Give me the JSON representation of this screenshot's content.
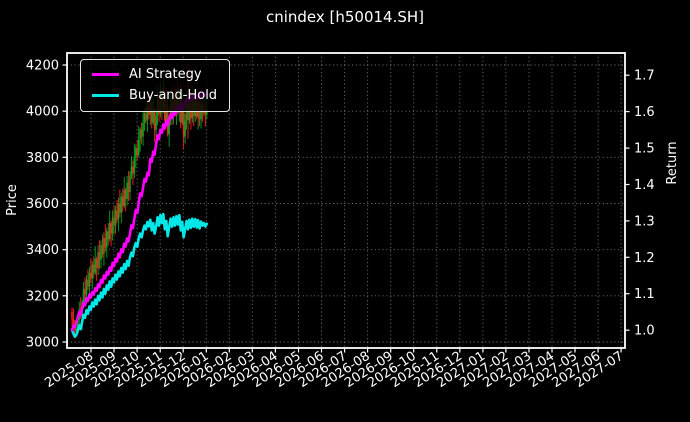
{
  "chart_data": {
    "type": "candlestick+line",
    "title": "cnindex [h50014.SH]",
    "left_axis": {
      "label": "Price",
      "ticks": [
        4200,
        4000,
        3800,
        3600,
        3400,
        3200,
        3000
      ],
      "range": [
        2974,
        4252
      ]
    },
    "right_axis": {
      "label": "Return",
      "ticks": [
        "1.7",
        "1.6",
        "1.5",
        "1.4",
        "1.3",
        "1.2",
        "1.1",
        "1.0"
      ],
      "range": [
        0.951,
        1.761
      ]
    },
    "x_ticks": [
      "2025-08",
      "2025-09",
      "2025-10",
      "2025-11",
      "2025-12",
      "2026-01",
      "2026-02",
      "2026-03",
      "2026-04",
      "2026-05",
      "2026-06",
      "2026-07",
      "2026-08",
      "2026-09",
      "2026-10",
      "2026-11",
      "2026-12",
      "2027-01",
      "2027-02",
      "2027-03",
      "2027-04",
      "2027-05",
      "2027-06",
      "2027-07"
    ],
    "grid": true,
    "legend_position": "upper-left",
    "candles": [
      [
        3130,
        3150,
        3065,
        3100
      ],
      [
        3100,
        3145,
        3055,
        3070
      ],
      [
        3070,
        3095,
        3030,
        3045
      ],
      [
        3045,
        3090,
        3025,
        3060
      ],
      [
        3060,
        3110,
        3040,
        3095
      ],
      [
        3095,
        3175,
        3070,
        3140
      ],
      [
        3140,
        3195,
        3100,
        3110
      ],
      [
        3110,
        3185,
        3055,
        3175
      ],
      [
        3175,
        3260,
        3145,
        3230
      ],
      [
        3230,
        3280,
        3165,
        3205
      ],
      [
        3205,
        3290,
        3170,
        3270
      ],
      [
        3270,
        3315,
        3225,
        3240
      ],
      [
        3240,
        3325,
        3190,
        3300
      ],
      [
        3300,
        3360,
        3255,
        3275
      ],
      [
        3275,
        3350,
        3230,
        3335
      ],
      [
        3335,
        3370,
        3275,
        3300
      ],
      [
        3300,
        3415,
        3290,
        3360
      ],
      [
        3360,
        3370,
        3265,
        3320
      ],
      [
        3320,
        3420,
        3290,
        3390
      ],
      [
        3390,
        3440,
        3315,
        3355
      ],
      [
        3355,
        3440,
        3320,
        3420
      ],
      [
        3420,
        3465,
        3365,
        3380
      ],
      [
        3380,
        3475,
        3330,
        3450
      ],
      [
        3450,
        3510,
        3390,
        3410
      ],
      [
        3410,
        3495,
        3365,
        3480
      ],
      [
        3480,
        3515,
        3420,
        3445
      ],
      [
        3445,
        3570,
        3435,
        3515
      ],
      [
        3515,
        3525,
        3415,
        3470
      ],
      [
        3470,
        3570,
        3440,
        3540
      ],
      [
        3540,
        3590,
        3465,
        3505
      ],
      [
        3505,
        3590,
        3470,
        3570
      ],
      [
        3570,
        3615,
        3515,
        3530
      ],
      [
        3530,
        3625,
        3480,
        3600
      ],
      [
        3600,
        3660,
        3540,
        3560
      ],
      [
        3560,
        3645,
        3515,
        3630
      ],
      [
        3630,
        3665,
        3565,
        3590
      ],
      [
        3590,
        3715,
        3580,
        3660
      ],
      [
        3660,
        3670,
        3565,
        3620
      ],
      [
        3620,
        3720,
        3590,
        3690
      ],
      [
        3690,
        3740,
        3610,
        3650
      ],
      [
        3650,
        3740,
        3615,
        3720
      ],
      [
        3720,
        3805,
        3705,
        3760
      ],
      [
        3760,
        3785,
        3680,
        3730
      ],
      [
        3730,
        3860,
        3710,
        3800
      ],
      [
        3800,
        3855,
        3755,
        3840
      ],
      [
        3840,
        3875,
        3785,
        3810
      ],
      [
        3810,
        3935,
        3800,
        3880
      ],
      [
        3880,
        3930,
        3825,
        3920
      ],
      [
        3920,
        3950,
        3860,
        3890
      ],
      [
        3890,
        4000,
        3850,
        3950
      ],
      [
        3950,
        4010,
        3915,
        3990
      ],
      [
        3990,
        4035,
        3945,
        3960
      ],
      [
        3960,
        4045,
        3910,
        4020
      ],
      [
        4020,
        4080,
        3965,
        3985
      ],
      [
        3985,
        4055,
        3940,
        4040
      ],
      [
        4040,
        4075,
        3925,
        3950
      ],
      [
        3950,
        4065,
        3940,
        4010
      ],
      [
        4010,
        4020,
        3865,
        3920
      ],
      [
        3920,
        4010,
        3890,
        3980
      ],
      [
        3980,
        4110,
        3940,
        4060
      ],
      [
        4060,
        4080,
        3955,
        3990
      ],
      [
        3990,
        4125,
        3975,
        4080
      ],
      [
        4080,
        4105,
        3960,
        4010
      ],
      [
        4010,
        4150,
        3990,
        4090
      ],
      [
        4090,
        4105,
        3915,
        3960
      ],
      [
        3960,
        4065,
        3935,
        4030
      ],
      [
        4030,
        4085,
        3890,
        3900
      ],
      [
        3900,
        3980,
        3845,
        3970
      ],
      [
        3970,
        4080,
        3940,
        4050
      ],
      [
        4050,
        4100,
        3940,
        3980
      ],
      [
        3980,
        4080,
        3945,
        4060
      ],
      [
        4060,
        4105,
        3975,
        3990
      ],
      [
        3990,
        4095,
        3940,
        4070
      ],
      [
        4070,
        4130,
        3980,
        4000
      ],
      [
        4000,
        4095,
        3955,
        4080
      ],
      [
        4080,
        4115,
        3925,
        3950
      ],
      [
        3950,
        4075,
        3940,
        4020
      ],
      [
        4020,
        4030,
        3835,
        3890
      ],
      [
        3890,
        3990,
        3860,
        3960
      ],
      [
        3960,
        4080,
        3920,
        4030
      ],
      [
        4030,
        4200,
        3880,
        3960
      ],
      [
        3960,
        4085,
        3945,
        4040
      ],
      [
        4040,
        4065,
        3920,
        3970
      ],
      [
        3970,
        4110,
        3950,
        4050
      ],
      [
        4050,
        4065,
        3935,
        3980
      ],
      [
        3980,
        4080,
        3955,
        4045
      ],
      [
        4045,
        4100,
        3965,
        3975
      ],
      [
        3975,
        4045,
        3920,
        4035
      ],
      [
        4035,
        4065,
        3935,
        3965
      ],
      [
        3965,
        4075,
        3925,
        4025
      ],
      [
        4025,
        4045,
        3955,
        3990
      ],
      [
        3990,
        4055,
        3975,
        4010
      ],
      [
        4010,
        4035,
        3935,
        3985
      ],
      [
        3985,
        4065,
        3965,
        4005
      ]
    ],
    "series": [
      {
        "name": "AI Strategy",
        "axis": "return",
        "color": "#ff00ff",
        "values": [
          1.0,
          1.012,
          1.008,
          1.022,
          1.035,
          1.05,
          1.042,
          1.06,
          1.075,
          1.068,
          1.088,
          1.08,
          1.098,
          1.09,
          1.105,
          1.098,
          1.115,
          1.108,
          1.126,
          1.118,
          1.138,
          1.13,
          1.15,
          1.142,
          1.16,
          1.152,
          1.172,
          1.163,
          1.185,
          1.176,
          1.196,
          1.188,
          1.21,
          1.2,
          1.222,
          1.214,
          1.238,
          1.23,
          1.252,
          1.244,
          1.265,
          1.288,
          1.28,
          1.305,
          1.33,
          1.322,
          1.35,
          1.375,
          1.368,
          1.392,
          1.415,
          1.408,
          1.432,
          1.425,
          1.47,
          1.462,
          1.49,
          1.482,
          1.51,
          1.535,
          1.525,
          1.55,
          1.542,
          1.565,
          1.555,
          1.575,
          1.562,
          1.578,
          1.592,
          1.582,
          1.602,
          1.592,
          1.612,
          1.6,
          1.618,
          1.605,
          1.622,
          1.608,
          1.625,
          1.636,
          1.628,
          1.645,
          1.632,
          1.646,
          1.634,
          1.648,
          1.635,
          1.649,
          1.636,
          1.65,
          1.64,
          1.652,
          1.644,
          1.65
        ]
      },
      {
        "name": "Buy-and-Hold",
        "axis": "return",
        "color": "#00e8e8",
        "values": [
          1.0,
          0.99,
          0.982,
          0.987,
          0.998,
          1.013,
          1.003,
          1.024,
          1.042,
          1.034,
          1.055,
          1.045,
          1.065,
          1.056,
          1.076,
          1.065,
          1.084,
          1.071,
          1.094,
          1.082,
          1.103,
          1.09,
          1.113,
          1.1,
          1.123,
          1.111,
          1.134,
          1.119,
          1.142,
          1.131,
          1.152,
          1.139,
          1.161,
          1.148,
          1.171,
          1.158,
          1.181,
          1.168,
          1.19,
          1.177,
          1.2,
          1.213,
          1.203,
          1.226,
          1.239,
          1.229,
          1.252,
          1.265,
          1.255,
          1.274,
          1.287,
          1.277,
          1.297,
          1.285,
          1.303,
          1.274,
          1.294,
          1.265,
          1.284,
          1.31,
          1.287,
          1.316,
          1.294,
          1.319,
          1.277,
          1.3,
          1.258,
          1.281,
          1.306,
          1.284,
          1.31,
          1.287,
          1.313,
          1.29,
          1.316,
          1.274,
          1.297,
          1.255,
          1.277,
          1.3,
          1.277,
          1.303,
          1.281,
          1.306,
          1.284,
          1.305,
          1.282,
          1.302,
          1.279,
          1.298,
          1.287,
          1.294,
          1.285,
          1.292
        ]
      }
    ]
  },
  "colors": {
    "background": "#000000",
    "foreground": "#ffffff",
    "grid": "rgba(255,255,255,0.42)",
    "candle_up": "#00a820",
    "candle_down": "#ff2020",
    "ai_strategy": "#ff00ff",
    "buy_and_hold": "#00e8e8"
  }
}
